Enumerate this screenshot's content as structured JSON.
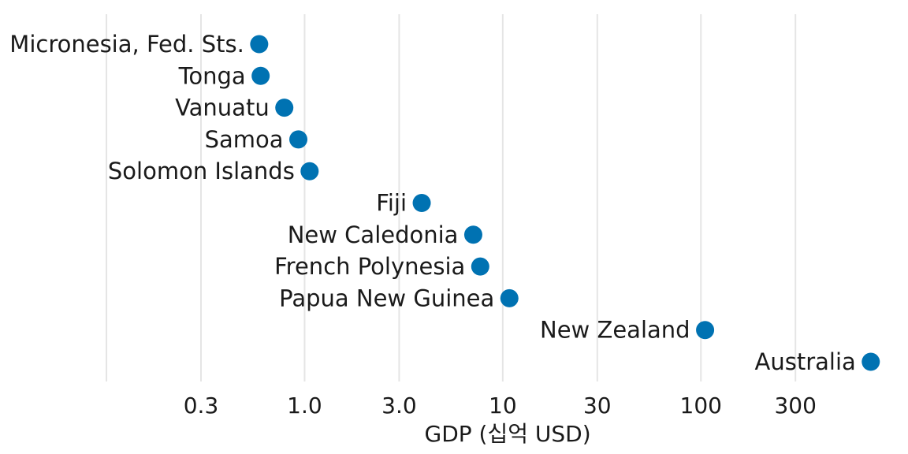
{
  "chart_data": {
    "type": "scatter",
    "xlabel": "GDP (십억 USD)",
    "xscale": "log",
    "xlim": [
      0.09,
      900
    ],
    "grid": true,
    "x_ticks": [
      {
        "value": 0.1,
        "label": ""
      },
      {
        "value": 0.3,
        "label": "0.3"
      },
      {
        "value": 1.0,
        "label": "1.0"
      },
      {
        "value": 3.0,
        "label": "3.0"
      },
      {
        "value": 10,
        "label": "10"
      },
      {
        "value": 30,
        "label": "30"
      },
      {
        "value": 100,
        "label": "100"
      },
      {
        "value": 300,
        "label": "300"
      }
    ],
    "point_color": "#0072b2",
    "points": [
      {
        "label": "Micronesia, Fed. Sts.",
        "value": 0.59
      },
      {
        "label": "Tonga",
        "value": 0.6
      },
      {
        "label": "Vanuatu",
        "value": 0.79
      },
      {
        "label": "Samoa",
        "value": 0.93
      },
      {
        "label": "Solomon Islands",
        "value": 1.06
      },
      {
        "label": "Fiji",
        "value": 3.9
      },
      {
        "label": "New Caledonia",
        "value": 7.1
      },
      {
        "label": "French Polynesia",
        "value": 7.7
      },
      {
        "label": "Papua New Guinea",
        "value": 10.8
      },
      {
        "label": "New Zealand",
        "value": 105
      },
      {
        "label": "Australia",
        "value": 720
      }
    ]
  }
}
